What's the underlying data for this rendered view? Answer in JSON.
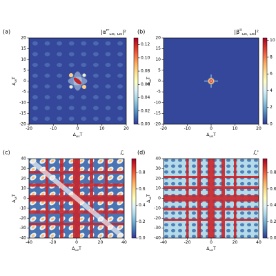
{
  "chart_data": [
    {
      "type": "heatmap",
      "panel_label": "(a)",
      "title": [
        {
          "text": "|α",
          "pos": "base"
        },
        {
          "text": "rr",
          "pos": "sup"
        },
        {
          "text": "ωs, ωs",
          "pos": "sub"
        },
        {
          "text": "|²",
          "pos": "base"
        }
      ],
      "xlabel": [
        {
          "text": "Δ",
          "pos": "base"
        },
        {
          "text": "ωs",
          "pos": "sub"
        },
        {
          "text": "T",
          "pos": "base"
        }
      ],
      "ylabel": [
        {
          "text": "Δ",
          "pos": "base"
        },
        {
          "text": "ωi",
          "pos": "sub"
        },
        {
          "text": "T",
          "pos": "base"
        }
      ],
      "xlim": [
        -20,
        20
      ],
      "ylim": [
        -20,
        20
      ],
      "xticks": [
        -20,
        -10,
        0,
        10,
        20
      ],
      "yticks": [
        -20,
        -15,
        -10,
        -5,
        0,
        5,
        10,
        15,
        20
      ],
      "colormap": "RdYlBu_r",
      "clim": [
        0,
        0.13
      ],
      "cticks": [
        {
          "value": 0,
          "label": "0.00"
        },
        {
          "value": 0.02,
          "label": "0.02"
        },
        {
          "value": 0.04,
          "label": "0.04"
        },
        {
          "value": 0.06,
          "label": "0.06"
        },
        {
          "value": 0.08,
          "label": "0.08"
        },
        {
          "value": 0.1,
          "label": "0.10"
        },
        {
          "value": 0.12,
          "label": "0.12"
        }
      ]
    },
    {
      "type": "heatmap",
      "panel_label": "(b)",
      "title": [
        {
          "text": "|β",
          "pos": "base"
        },
        {
          "text": "ii",
          "pos": "sup"
        },
        {
          "text": "ωs, ωs",
          "pos": "sub"
        },
        {
          "text": "|²",
          "pos": "base"
        }
      ],
      "xlabel": [
        {
          "text": "Δ",
          "pos": "base"
        },
        {
          "text": "ωs",
          "pos": "sub"
        },
        {
          "text": "T",
          "pos": "base"
        }
      ],
      "ylabel": [
        {
          "text": "Δ",
          "pos": "base"
        },
        {
          "text": "ωi",
          "pos": "sub"
        },
        {
          "text": "T",
          "pos": "base"
        }
      ],
      "xlim": [
        -20,
        20
      ],
      "ylim": [
        -20,
        20
      ],
      "xticks": [
        -20,
        -10,
        0,
        10,
        20
      ],
      "yticks": [
        -20,
        -15,
        -10,
        -5,
        0,
        5,
        10,
        15,
        20
      ],
      "colormap": "RdYlBu_r",
      "clim": [
        0,
        10.3
      ],
      "cticks": [
        0,
        2,
        4,
        6,
        8,
        10
      ]
    },
    {
      "type": "heatmap",
      "panel_label": "(c)",
      "title": [
        {
          "text": "ℒ",
          "pos": "base"
        }
      ],
      "xlabel": [
        {
          "text": "Δ",
          "pos": "base"
        },
        {
          "text": "ωs",
          "pos": "sub"
        },
        {
          "text": "T",
          "pos": "base"
        }
      ],
      "ylabel": [
        {
          "text": "Δ",
          "pos": "base"
        },
        {
          "text": "ωi",
          "pos": "sub"
        },
        {
          "text": "T",
          "pos": "base"
        }
      ],
      "xlim": [
        -40,
        40
      ],
      "ylim": [
        -40,
        40
      ],
      "xticks": [
        -40,
        -20,
        0,
        20,
        40
      ],
      "yticks": [
        -40,
        -30,
        -20,
        -10,
        0,
        10,
        20,
        30,
        40
      ],
      "colormap": "RdYlBu_r",
      "clim": [
        0,
        0.97
      ],
      "cticks": [
        {
          "value": 0,
          "label": "0.0"
        },
        {
          "value": 0.2,
          "label": "0.2"
        },
        {
          "value": 0.4,
          "label": "0.4"
        },
        {
          "value": 0.6,
          "label": "0.6"
        },
        {
          "value": 0.8,
          "label": "0.8"
        }
      ]
    },
    {
      "type": "heatmap",
      "panel_label": "(d)",
      "title": [
        {
          "text": "ℒ'",
          "pos": "base"
        }
      ],
      "xlabel": [
        {
          "text": "Δ",
          "pos": "base"
        },
        {
          "text": "ωs",
          "pos": "sub"
        },
        {
          "text": "T",
          "pos": "base"
        }
      ],
      "ylabel": [
        {
          "text": "Δ",
          "pos": "base"
        },
        {
          "text": "ωi",
          "pos": "sub"
        },
        {
          "text": "T",
          "pos": "base"
        }
      ],
      "xlim": [
        -40,
        40
      ],
      "ylim": [
        -40,
        40
      ],
      "xticks": [
        -40,
        -20,
        0,
        20,
        40
      ],
      "yticks": [
        -40,
        -30,
        -20,
        -10,
        0,
        10,
        20,
        30,
        40
      ],
      "colormap": "RdYlBu_r",
      "clim": [
        0,
        0.97
      ],
      "cticks": [
        {
          "value": 0,
          "label": "0.0"
        },
        {
          "value": 0.2,
          "label": "0.2"
        },
        {
          "value": 0.4,
          "label": "0.4"
        },
        {
          "value": 0.6,
          "label": "0.6"
        },
        {
          "value": 0.8,
          "label": "0.8"
        }
      ]
    }
  ]
}
